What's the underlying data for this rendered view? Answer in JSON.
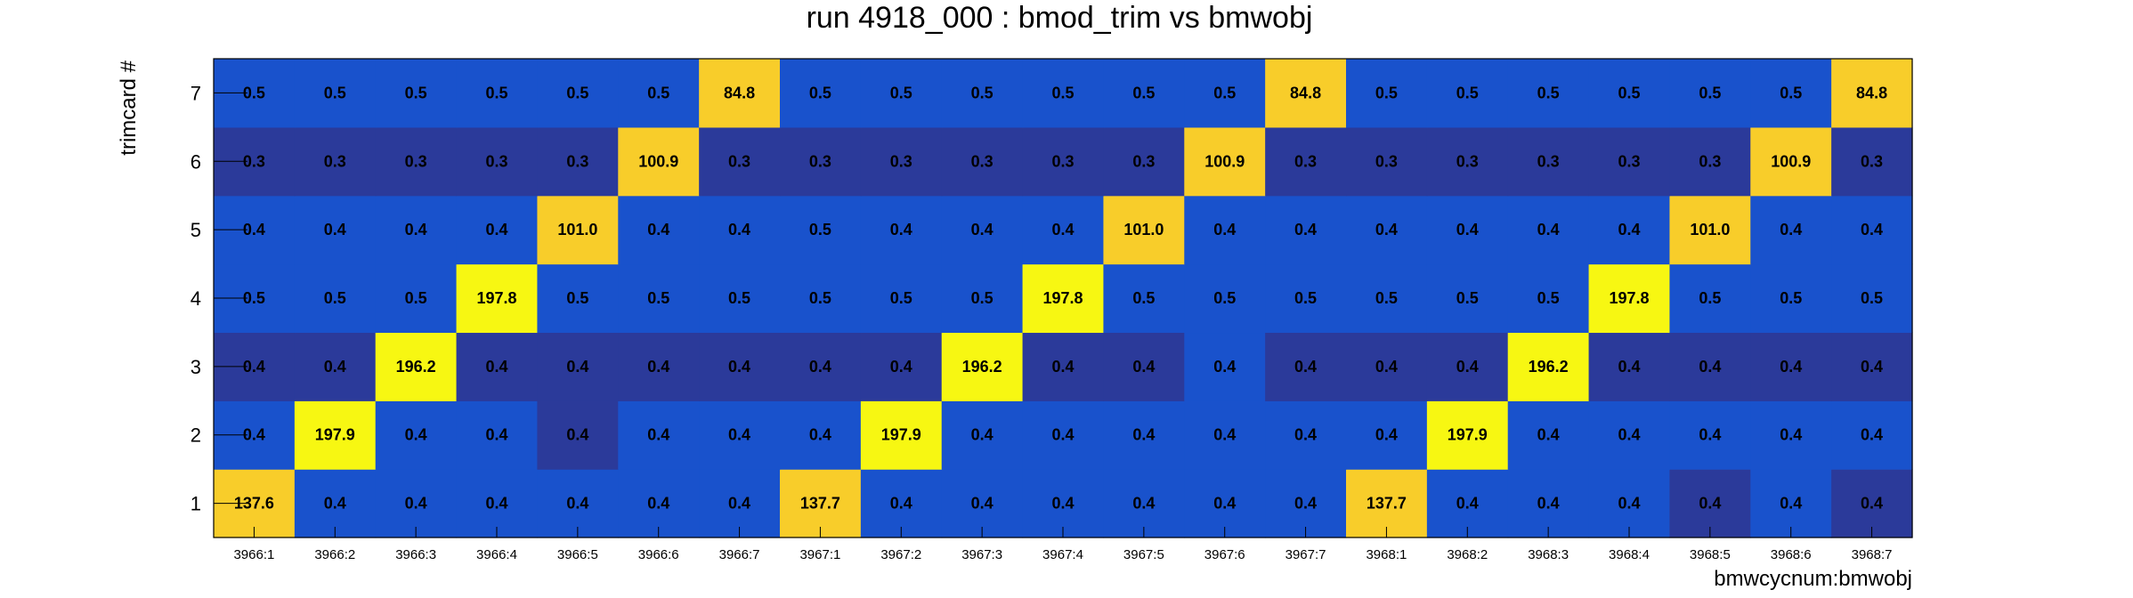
{
  "chart_data": {
    "type": "heatmap",
    "title": "run 4918_000 : bmod_trim vs bmwobj",
    "xlabel": "bmwcycnum:bmwobj",
    "ylabel": "trimcard #",
    "x_categories": [
      "3966:1",
      "3966:2",
      "3966:3",
      "3966:4",
      "3966:5",
      "3966:6",
      "3966:7",
      "3967:1",
      "3967:2",
      "3967:3",
      "3967:4",
      "3967:5",
      "3967:6",
      "3967:7",
      "3968:1",
      "3968:2",
      "3968:3",
      "3968:4",
      "3968:5",
      "3968:6",
      "3968:7"
    ],
    "y_categories": [
      "1",
      "2",
      "3",
      "4",
      "5",
      "6",
      "7"
    ],
    "values": [
      [
        "137.6",
        "0.4",
        "0.4",
        "0.4",
        "0.4",
        "0.4",
        "0.4",
        "137.7",
        "0.4",
        "0.4",
        "0.4",
        "0.4",
        "0.4",
        "0.4",
        "137.7",
        "0.4",
        "0.4",
        "0.4",
        "0.4",
        "0.4",
        "0.4"
      ],
      [
        "0.4",
        "197.9",
        "0.4",
        "0.4",
        "0.4",
        "0.4",
        "0.4",
        "0.4",
        "197.9",
        "0.4",
        "0.4",
        "0.4",
        "0.4",
        "0.4",
        "0.4",
        "197.9",
        "0.4",
        "0.4",
        "0.4",
        "0.4",
        "0.4"
      ],
      [
        "0.4",
        "0.4",
        "196.2",
        "0.4",
        "0.4",
        "0.4",
        "0.4",
        "0.4",
        "0.4",
        "196.2",
        "0.4",
        "0.4",
        "0.4",
        "0.4",
        "0.4",
        "0.4",
        "196.2",
        "0.4",
        "0.4",
        "0.4",
        "0.4"
      ],
      [
        "0.5",
        "0.5",
        "0.5",
        "197.8",
        "0.5",
        "0.5",
        "0.5",
        "0.5",
        "0.5",
        "0.5",
        "197.8",
        "0.5",
        "0.5",
        "0.5",
        "0.5",
        "0.5",
        "0.5",
        "197.8",
        "0.5",
        "0.5",
        "0.5"
      ],
      [
        "0.4",
        "0.4",
        "0.4",
        "0.4",
        "101.0",
        "0.4",
        "0.4",
        "0.5",
        "0.4",
        "0.4",
        "0.4",
        "101.0",
        "0.4",
        "0.4",
        "0.4",
        "0.4",
        "0.4",
        "0.4",
        "101.0",
        "0.4",
        "0.4"
      ],
      [
        "0.3",
        "0.3",
        "0.3",
        "0.3",
        "0.3",
        "100.9",
        "0.3",
        "0.3",
        "0.3",
        "0.3",
        "0.3",
        "0.3",
        "100.9",
        "0.3",
        "0.3",
        "0.3",
        "0.3",
        "0.3",
        "0.3",
        "100.9",
        "0.3"
      ],
      [
        "0.5",
        "0.5",
        "0.5",
        "0.5",
        "0.5",
        "0.5",
        "84.8",
        "0.5",
        "0.5",
        "0.5",
        "0.5",
        "0.5",
        "0.5",
        "84.8",
        "0.5",
        "0.5",
        "0.5",
        "0.5",
        "0.5",
        "0.5",
        "84.8"
      ]
    ],
    "colors": {
      "dark_blue": "#2b3a9a",
      "blue": "#1952cc",
      "orange": "#f8cd2a",
      "yellow": "#f7f712"
    }
  }
}
